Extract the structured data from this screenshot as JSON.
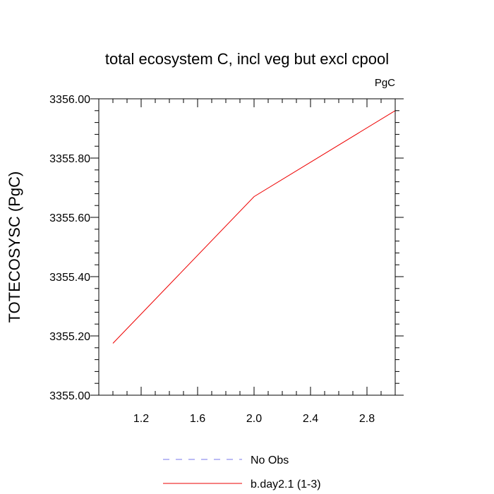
{
  "chart_data": {
    "type": "line",
    "title": "total ecosystem C, incl veg but excl cpool",
    "units_label": "PgC",
    "ylabel": "TOTECOSYSC  (PgC)",
    "xlabel": "",
    "xlim": [
      0.9,
      3.0
    ],
    "ylim": [
      3355.0,
      3356.0
    ],
    "x_ticks": [
      1.2,
      1.6,
      2.0,
      2.4,
      2.8
    ],
    "x_tick_labels": [
      "1.2",
      "1.6",
      "2.0",
      "2.4",
      "2.8"
    ],
    "x_minor_step": 0.1,
    "y_ticks": [
      3355.0,
      3355.2,
      3355.4,
      3355.6,
      3355.8,
      3356.0
    ],
    "y_tick_labels": [
      "3355.00",
      "3355.20",
      "3355.40",
      "3355.60",
      "3355.80",
      "3356.00"
    ],
    "y_minor_step": 0.04,
    "grid": false,
    "legend_position": "bottom-center",
    "series": [
      {
        "name": "No Obs",
        "color": "#7777ee",
        "dash": "dashed",
        "x": [],
        "y": []
      },
      {
        "name": "b.day2.1 (1-3)",
        "color": "#ee0000",
        "dash": "solid",
        "x": [
          1.0,
          2.0,
          3.0
        ],
        "y": [
          3355.175,
          3355.67,
          3355.96
        ]
      }
    ]
  }
}
